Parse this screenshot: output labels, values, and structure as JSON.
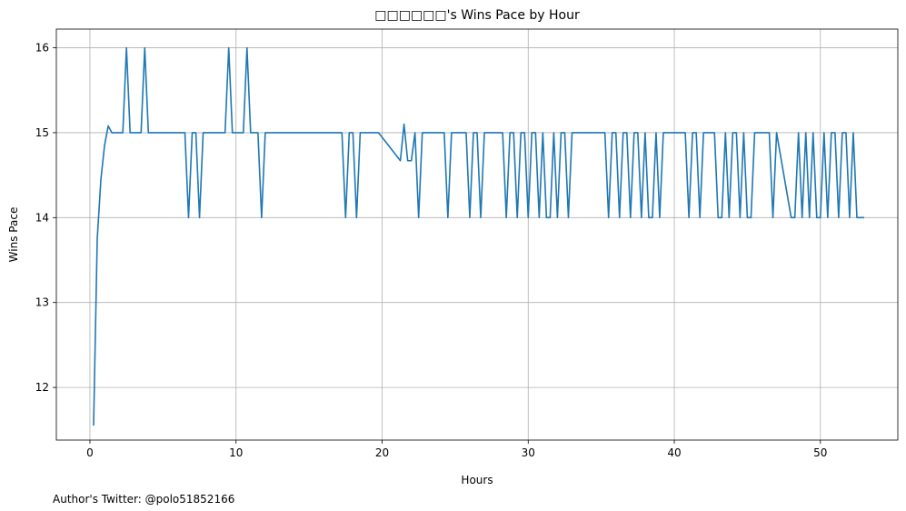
{
  "footer": "Author's Twitter: @polo51852166",
  "chart_data": {
    "type": "line",
    "title": "□□□□□□'s Wins Pace by Hour",
    "xlabel": "Hours",
    "ylabel": "Wins Pace",
    "xlim": [
      -2.3,
      55.3
    ],
    "ylim": [
      11.38,
      16.22
    ],
    "xticks": [
      0,
      10,
      20,
      30,
      40,
      50
    ],
    "yticks": [
      12,
      13,
      14,
      15,
      16
    ],
    "grid": true,
    "color": "#1f77b4",
    "series": [
      {
        "x": [
          0.25,
          0.5,
          0.75,
          1.0,
          1.25,
          1.5,
          2.0,
          2.25,
          2.5,
          2.75,
          3.5,
          3.75,
          4.0,
          4.25,
          6.5,
          6.75,
          7.0,
          7.25,
          7.5,
          7.75,
          9.25,
          9.5,
          9.75,
          10.5,
          10.75,
          11.0,
          11.5,
          11.75,
          12.0,
          17.25,
          17.5,
          17.75,
          18.0,
          18.25,
          18.5,
          19.75,
          21.25,
          21.5,
          21.75,
          22.0,
          22.25,
          22.5,
          22.75,
          24.25,
          24.5,
          24.75,
          25.75,
          26.0,
          26.25,
          26.5,
          26.75,
          27.0,
          28.25,
          28.5,
          28.75,
          29.0,
          29.25,
          29.5,
          29.75,
          30.0,
          30.25,
          30.5,
          30.75,
          31.0,
          31.25,
          31.5,
          31.75,
          32.0,
          32.25,
          32.5,
          32.75,
          33.0,
          35.25,
          35.5,
          35.75,
          36.0,
          36.25,
          36.5,
          36.75,
          37.0,
          37.25,
          37.5,
          37.75,
          38.0,
          38.25,
          38.5,
          38.75,
          39.0,
          39.25,
          39.5,
          40.75,
          41.0,
          41.25,
          41.5,
          41.75,
          42.0,
          42.75,
          43.0,
          43.25,
          43.5,
          43.75,
          44.0,
          44.25,
          44.5,
          44.75,
          45.0,
          45.25,
          45.5,
          46.5,
          46.75,
          47.0,
          48.0,
          48.25,
          48.5,
          48.75,
          49.0,
          49.25,
          49.5,
          49.75,
          50.0,
          50.25,
          50.5,
          50.75,
          51.0,
          51.25,
          51.5,
          51.75,
          52.0,
          52.25,
          52.5,
          52.75,
          53.0
        ],
        "y": [
          11.55,
          13.75,
          14.45,
          14.85,
          15.08,
          15.0,
          15.0,
          15.0,
          16.0,
          15.0,
          15.0,
          16.0,
          15.0,
          15.0,
          15.0,
          14.0,
          15.0,
          15.0,
          14.0,
          15.0,
          15.0,
          16.0,
          15.0,
          15.0,
          16.0,
          15.0,
          15.0,
          14.0,
          15.0,
          15.0,
          14.0,
          15.0,
          15.0,
          14.0,
          15.0,
          15.0,
          14.67,
          15.1,
          14.67,
          14.67,
          15.0,
          14.0,
          15.0,
          15.0,
          14.0,
          15.0,
          15.0,
          14.0,
          15.0,
          15.0,
          14.0,
          15.0,
          15.0,
          14.0,
          15.0,
          15.0,
          14.0,
          15.0,
          15.0,
          14.0,
          15.0,
          15.0,
          14.0,
          15.0,
          14.0,
          14.0,
          15.0,
          14.0,
          15.0,
          15.0,
          14.0,
          15.0,
          15.0,
          14.0,
          15.0,
          15.0,
          14.0,
          15.0,
          15.0,
          14.0,
          15.0,
          15.0,
          14.0,
          15.0,
          14.0,
          14.0,
          15.0,
          14.0,
          15.0,
          15.0,
          15.0,
          14.0,
          15.0,
          15.0,
          14.0,
          15.0,
          15.0,
          14.0,
          14.0,
          15.0,
          14.0,
          15.0,
          15.0,
          14.0,
          15.0,
          14.0,
          14.0,
          15.0,
          15.0,
          14.0,
          15.0,
          14.0,
          14.0,
          15.0,
          14.0,
          15.0,
          14.0,
          15.0,
          14.0,
          14.0,
          15.0,
          14.0,
          15.0,
          15.0,
          14.0,
          15.0,
          15.0,
          14.0,
          15.0,
          14.0,
          14.0,
          14.0
        ]
      }
    ]
  }
}
